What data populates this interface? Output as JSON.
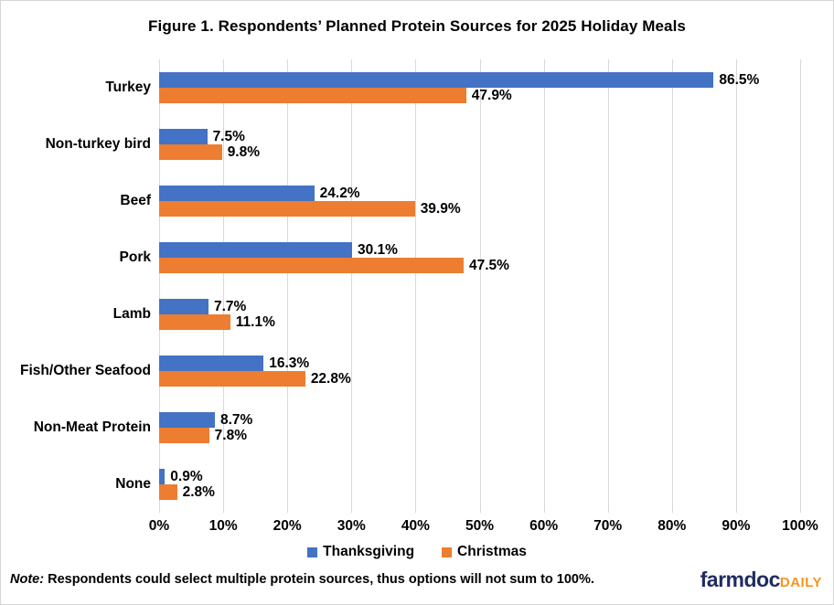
{
  "title": "Figure 1. Respondents’ Planned Protein Sources for 2025 Holiday Meals",
  "chart_data": {
    "type": "bar",
    "orientation": "horizontal",
    "title": "Figure 1. Respondents’ Planned Protein Sources for 2025 Holiday Meals",
    "categories": [
      "Turkey",
      "Non-turkey bird",
      "Beef",
      "Pork",
      "Lamb",
      "Fish/Other Seafood",
      "Non-Meat Protein",
      "None"
    ],
    "series": [
      {
        "name": "Thanksgiving",
        "color": "#4472C4",
        "values": [
          86.5,
          7.5,
          24.2,
          30.1,
          7.7,
          16.3,
          8.7,
          0.9
        ]
      },
      {
        "name": "Christmas",
        "color": "#ED7D31",
        "values": [
          47.9,
          9.8,
          39.9,
          47.5,
          11.1,
          22.8,
          7.8,
          2.8
        ]
      }
    ],
    "value_label_suffix": "%",
    "xlim": [
      0,
      100
    ],
    "x_ticks": [
      "0%",
      "10%",
      "20%",
      "30%",
      "40%",
      "50%",
      "60%",
      "70%",
      "80%",
      "90%",
      "100%"
    ],
    "grid": true,
    "gridline_color": "#D9D9D9",
    "legend_position": "bottom"
  },
  "legend": {
    "items": [
      {
        "label": "Thanksgiving",
        "color": "#4472C4"
      },
      {
        "label": "Christmas",
        "color": "#ED7D31"
      }
    ]
  },
  "footer": {
    "note_prefix": "Note:",
    "note_text": " Respondents could select multiple protein sources, thus options will not sum to 100%.",
    "logo": {
      "part1": "farmdoc",
      "part2": "DAILY",
      "color1": "#1F2C5F",
      "color2": "#F7941E"
    }
  }
}
